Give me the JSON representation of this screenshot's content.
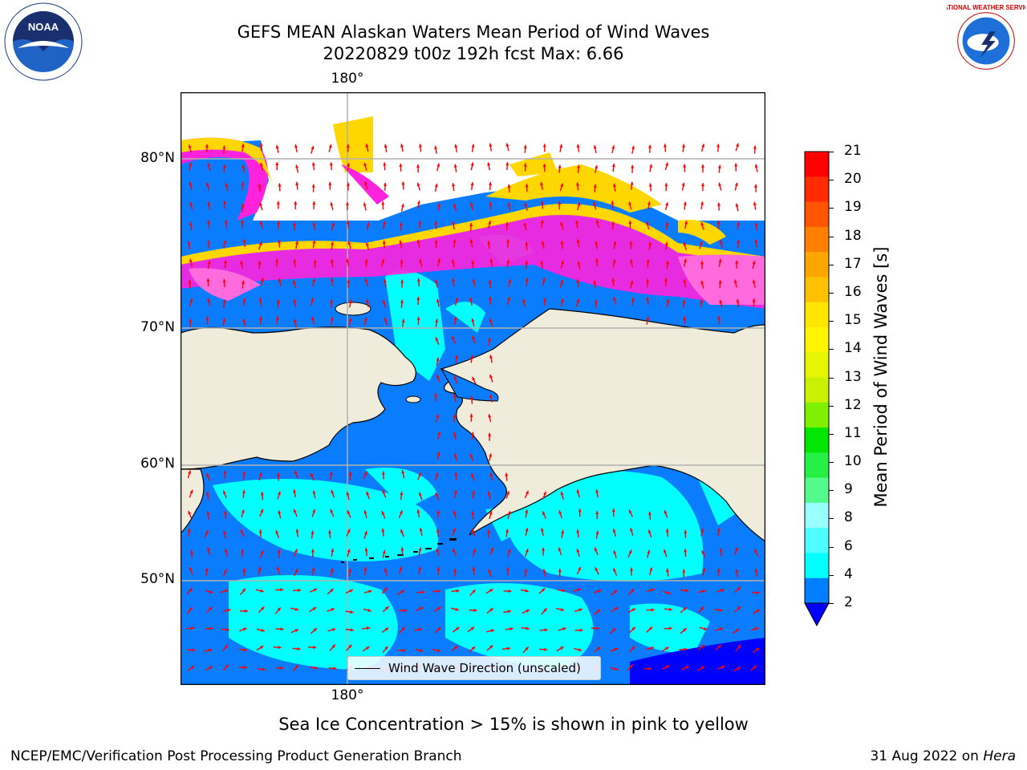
{
  "header": {
    "title_line1": "GEFS MEAN Alaskan Waters Mean Period of Wind Waves",
    "title_line2": "20220829 t00z 192h fcst   Max: 6.66"
  },
  "logos": {
    "left": {
      "text": "NOAA",
      "icon": "noaa-logo-icon"
    },
    "right": {
      "text": "NATIONAL WEATHER SERVICE",
      "icon": "nws-logo-icon"
    }
  },
  "map": {
    "lat_labels": [
      "80°N",
      "70°N",
      "60°N",
      "50°N"
    ],
    "lon_label_top": "180°",
    "lon_label_bottom": "180°",
    "land_color": "#efecdc",
    "arrow_color": "#ff0000"
  },
  "legend": {
    "label": "Wind Wave Direction (unscaled)"
  },
  "colorbar": {
    "title": "Mean Period of Wind Waves [s]",
    "ticks": [
      "21",
      "20",
      "19",
      "18",
      "17",
      "16",
      "15",
      "14",
      "13",
      "12",
      "11",
      "10",
      "9",
      "8",
      "6",
      "4",
      "2"
    ],
    "colors_top_to_bottom": [
      "#ff0000",
      "#ff2a00",
      "#ff5500",
      "#ff7f00",
      "#ffa500",
      "#ffc000",
      "#ffe600",
      "#fff400",
      "#e6f500",
      "#c8f000",
      "#7ef000",
      "#00e600",
      "#26f046",
      "#55fa8c",
      "#99ffff",
      "#4dffff",
      "#00ffff",
      "#0080ff"
    ],
    "under_color": "#0000ff"
  },
  "subtitle": "Sea Ice Concentration > 15% is shown in pink to yellow",
  "footer": {
    "left": "NCEP/EMC/Verification Post Processing Product Generation Branch",
    "date": "31 Aug 2022 on ",
    "machine": "Hera"
  }
}
